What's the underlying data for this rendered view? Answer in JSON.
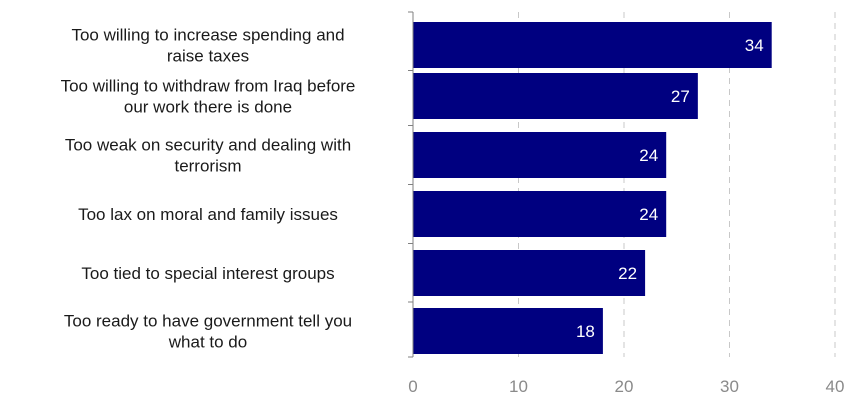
{
  "chart_data": {
    "type": "bar",
    "orientation": "horizontal",
    "title": "",
    "xlabel": "",
    "ylabel": "",
    "categories": [
      [
        "Too willing to increase spending and",
        "raise taxes"
      ],
      [
        "Too willing to withdraw from Iraq before",
        "our work there is done"
      ],
      [
        "Too weak on security and dealing with",
        "terrorism"
      ],
      [
        "Too lax on moral and family issues"
      ],
      [
        "Too tied to special interest groups"
      ],
      [
        "Too ready to have government tell you",
        "what to do"
      ]
    ],
    "values": [
      34,
      27,
      24,
      24,
      22,
      18
    ],
    "xlim": [
      0,
      40
    ],
    "ticks": [
      0,
      10,
      20,
      30,
      40
    ],
    "tick_labels": [
      "0",
      "10",
      "20",
      "30",
      "40"
    ],
    "data_labels": [
      "34",
      "27",
      "24",
      "24",
      "22",
      "18"
    ],
    "grid": "vertical dashed",
    "legend": "none",
    "colors": {
      "bar": "#000080",
      "grid": "#c8c8c8",
      "axis": "#808080",
      "value_text": "#ffffff",
      "tick_text": "#8a8a8a",
      "category_text": "#1a1a1a"
    }
  }
}
